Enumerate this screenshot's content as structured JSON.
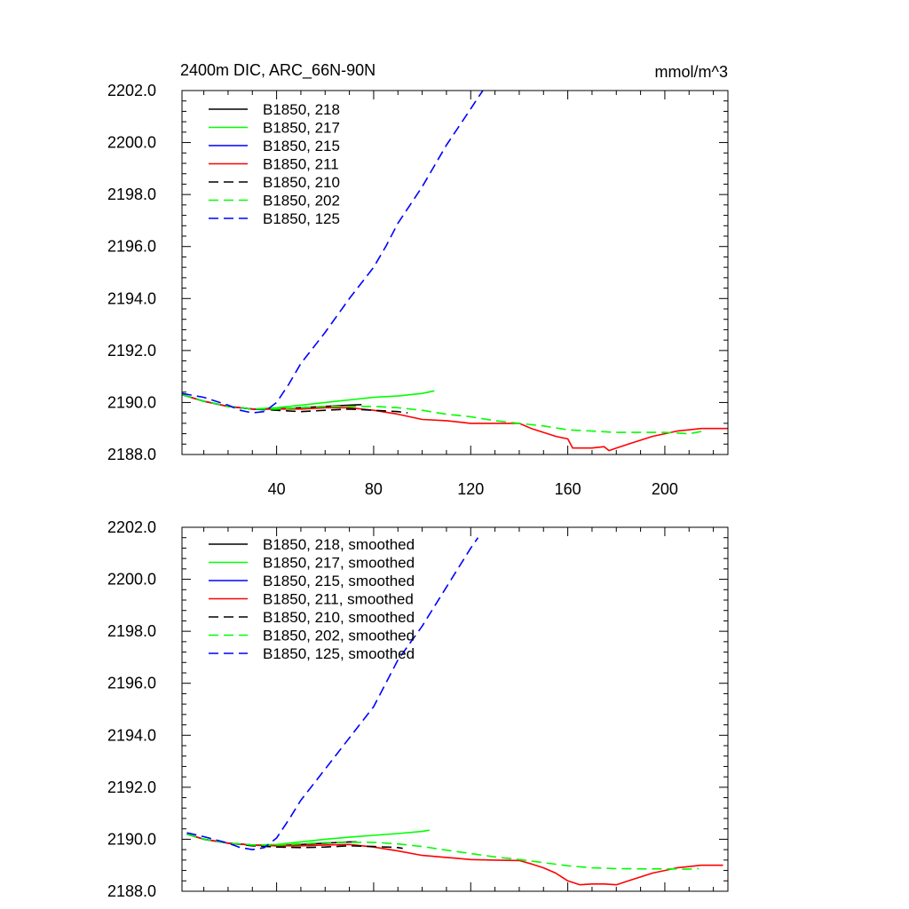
{
  "figure": {
    "title_left": "2400m DIC, ARC_66N-90N",
    "title_right": "mmol/m^3"
  },
  "chart_data": [
    {
      "type": "line",
      "title": "2400m DIC, ARC_66N-90N",
      "units": "mmol/m^3",
      "xlabel": "",
      "ylabel": "",
      "xlim": [
        1,
        226
      ],
      "ylim": [
        2188.0,
        2202.0
      ],
      "x_ticks": [
        40,
        80,
        120,
        160,
        200
      ],
      "x_tick_labels": [
        "40",
        "80",
        "120",
        "160",
        "200"
      ],
      "y_ticks": [
        2188.0,
        2190.0,
        2192.0,
        2194.0,
        2196.0,
        2198.0,
        2200.0,
        2202.0
      ],
      "y_tick_labels": [
        "2188.0",
        "2190.0",
        "2192.0",
        "2194.0",
        "2196.0",
        "2198.0",
        "2200.0",
        "2202.0"
      ],
      "legend_position": "top-left",
      "series": [
        {
          "name": "B1850, 218",
          "color": "#000000",
          "dash": "solid",
          "x": [
            1,
            10,
            20,
            30,
            40,
            50,
            60,
            70,
            75
          ],
          "y": [
            2190.3,
            2190.05,
            2189.85,
            2189.75,
            2189.75,
            2189.8,
            2189.85,
            2189.9,
            2189.92
          ]
        },
        {
          "name": "B1850, 217",
          "color": "#00ff00",
          "dash": "solid",
          "x": [
            1,
            10,
            20,
            30,
            40,
            50,
            60,
            70,
            80,
            90,
            100,
            105
          ],
          "y": [
            2190.3,
            2190.05,
            2189.85,
            2189.75,
            2189.8,
            2189.9,
            2190.0,
            2190.1,
            2190.2,
            2190.25,
            2190.35,
            2190.45
          ]
        },
        {
          "name": "B1850, 215",
          "color": "#0000ff",
          "dash": "solid",
          "x": [
            1,
            10,
            20,
            30,
            35
          ],
          "y": [
            2190.3,
            2190.05,
            2189.85,
            2189.75,
            2189.72
          ]
        },
        {
          "name": "B1850, 211",
          "color": "#ff0000",
          "dash": "solid",
          "x": [
            1,
            10,
            20,
            30,
            40,
            50,
            60,
            70,
            80,
            90,
            100,
            110,
            120,
            130,
            140,
            145,
            150,
            155,
            160,
            162,
            165,
            170,
            175,
            177,
            180,
            185,
            190,
            195,
            200,
            205,
            210,
            215,
            220,
            226
          ],
          "y": [
            2190.3,
            2190.05,
            2189.85,
            2189.75,
            2189.75,
            2189.75,
            2189.8,
            2189.8,
            2189.7,
            2189.55,
            2189.35,
            2189.3,
            2189.2,
            2189.2,
            2189.2,
            2189.0,
            2188.85,
            2188.7,
            2188.6,
            2188.25,
            2188.25,
            2188.25,
            2188.3,
            2188.15,
            2188.25,
            2188.4,
            2188.55,
            2188.7,
            2188.8,
            2188.9,
            2188.95,
            2189.0,
            2189.0,
            2189.0
          ]
        },
        {
          "name": "B1850, 210",
          "color": "#000000",
          "dash": "dashed",
          "x": [
            1,
            10,
            20,
            30,
            40,
            50,
            60,
            70,
            80,
            90,
            94
          ],
          "y": [
            2190.3,
            2190.05,
            2189.85,
            2189.75,
            2189.7,
            2189.65,
            2189.7,
            2189.75,
            2189.7,
            2189.65,
            2189.6
          ]
        },
        {
          "name": "B1850, 202",
          "color": "#00ff00",
          "dash": "dashed",
          "x": [
            1,
            10,
            20,
            30,
            40,
            50,
            60,
            70,
            80,
            90,
            100,
            110,
            120,
            130,
            140,
            150,
            160,
            170,
            180,
            190,
            200,
            210,
            216
          ],
          "y": [
            2190.3,
            2190.05,
            2189.85,
            2189.75,
            2189.75,
            2189.8,
            2189.85,
            2189.85,
            2189.85,
            2189.8,
            2189.7,
            2189.55,
            2189.45,
            2189.3,
            2189.2,
            2189.1,
            2188.95,
            2188.9,
            2188.85,
            2188.85,
            2188.85,
            2188.8,
            2188.9
          ]
        },
        {
          "name": "B1850, 125",
          "color": "#0000ff",
          "dash": "dashed",
          "x": [
            1,
            10,
            20,
            25,
            30,
            35,
            40,
            45,
            50,
            60,
            70,
            80,
            85,
            90,
            100,
            110,
            120,
            125
          ],
          "y": [
            2190.35,
            2190.2,
            2189.9,
            2189.7,
            2189.6,
            2189.65,
            2190.0,
            2190.7,
            2191.5,
            2192.7,
            2194.0,
            2195.2,
            2196.0,
            2196.9,
            2198.3,
            2199.9,
            2201.3,
            2202.0
          ]
        }
      ]
    },
    {
      "type": "line",
      "title": "",
      "xlabel": "",
      "ylabel": "",
      "xlim": [
        1,
        226
      ],
      "ylim": [
        2188.0,
        2202.0
      ],
      "x_ticks": [
        40,
        80,
        120,
        160,
        200
      ],
      "y_ticks": [
        2188.0,
        2190.0,
        2192.0,
        2194.0,
        2196.0,
        2198.0,
        2200.0,
        2202.0
      ],
      "y_tick_labels": [
        "2188.0",
        "2190.0",
        "2192.0",
        "2194.0",
        "2196.0",
        "2198.0",
        "2200.0",
        "2202.0"
      ],
      "legend_position": "top-left",
      "series": [
        {
          "name": "B1850, 218, smoothed",
          "color": "#000000",
          "dash": "solid",
          "x": [
            3,
            10,
            20,
            30,
            40,
            50,
            60,
            70,
            73
          ],
          "y": [
            2190.2,
            2190.0,
            2189.85,
            2189.78,
            2189.75,
            2189.8,
            2189.85,
            2189.9,
            2189.9
          ]
        },
        {
          "name": "B1850, 217, smoothed",
          "color": "#00ff00",
          "dash": "solid",
          "x": [
            3,
            10,
            20,
            30,
            40,
            50,
            60,
            70,
            80,
            90,
            100,
            103
          ],
          "y": [
            2190.2,
            2190.0,
            2189.85,
            2189.78,
            2189.8,
            2189.9,
            2190.0,
            2190.08,
            2190.15,
            2190.22,
            2190.3,
            2190.35
          ]
        },
        {
          "name": "B1850, 215, smoothed",
          "color": "#0000ff",
          "dash": "solid",
          "x": [
            3,
            10,
            20,
            30,
            33
          ],
          "y": [
            2190.2,
            2190.0,
            2189.85,
            2189.78,
            2189.76
          ]
        },
        {
          "name": "B1850, 211, smoothed",
          "color": "#ff0000",
          "dash": "solid",
          "x": [
            3,
            10,
            20,
            30,
            40,
            50,
            60,
            70,
            80,
            90,
            100,
            110,
            120,
            130,
            140,
            145,
            150,
            155,
            160,
            165,
            170,
            175,
            180,
            185,
            190,
            195,
            200,
            205,
            210,
            215,
            220,
            224
          ],
          "y": [
            2190.2,
            2190.0,
            2189.85,
            2189.78,
            2189.75,
            2189.75,
            2189.78,
            2189.8,
            2189.7,
            2189.55,
            2189.38,
            2189.3,
            2189.22,
            2189.2,
            2189.18,
            2189.05,
            2188.9,
            2188.7,
            2188.4,
            2188.25,
            2188.28,
            2188.28,
            2188.25,
            2188.4,
            2188.55,
            2188.7,
            2188.8,
            2188.9,
            2188.95,
            2189.0,
            2189.0,
            2189.0
          ]
        },
        {
          "name": "B1850, 210, smoothed",
          "color": "#000000",
          "dash": "dashed",
          "x": [
            3,
            10,
            20,
            30,
            40,
            50,
            60,
            70,
            80,
            90,
            92
          ],
          "y": [
            2190.2,
            2190.0,
            2189.85,
            2189.75,
            2189.7,
            2189.68,
            2189.7,
            2189.75,
            2189.72,
            2189.68,
            2189.65
          ]
        },
        {
          "name": "B1850, 202, smoothed",
          "color": "#00ff00",
          "dash": "dashed",
          "x": [
            3,
            10,
            20,
            30,
            40,
            50,
            60,
            70,
            80,
            90,
            100,
            110,
            120,
            130,
            140,
            150,
            160,
            170,
            180,
            190,
            200,
            210,
            214
          ],
          "y": [
            2190.2,
            2190.0,
            2189.85,
            2189.78,
            2189.78,
            2189.82,
            2189.87,
            2189.88,
            2189.88,
            2189.82,
            2189.72,
            2189.58,
            2189.45,
            2189.32,
            2189.22,
            2189.1,
            2188.98,
            2188.9,
            2188.87,
            2188.86,
            2188.86,
            2188.85,
            2188.87
          ]
        },
        {
          "name": "B1850, 125, smoothed",
          "color": "#0000ff",
          "dash": "dashed",
          "x": [
            3,
            10,
            20,
            25,
            30,
            35,
            40,
            45,
            50,
            60,
            70,
            80,
            85,
            90,
            100,
            110,
            120,
            123
          ],
          "y": [
            2190.25,
            2190.1,
            2189.85,
            2189.68,
            2189.6,
            2189.68,
            2190.05,
            2190.75,
            2191.5,
            2192.7,
            2193.9,
            2195.1,
            2196.0,
            2196.9,
            2198.2,
            2199.7,
            2201.2,
            2201.6
          ]
        }
      ]
    }
  ]
}
